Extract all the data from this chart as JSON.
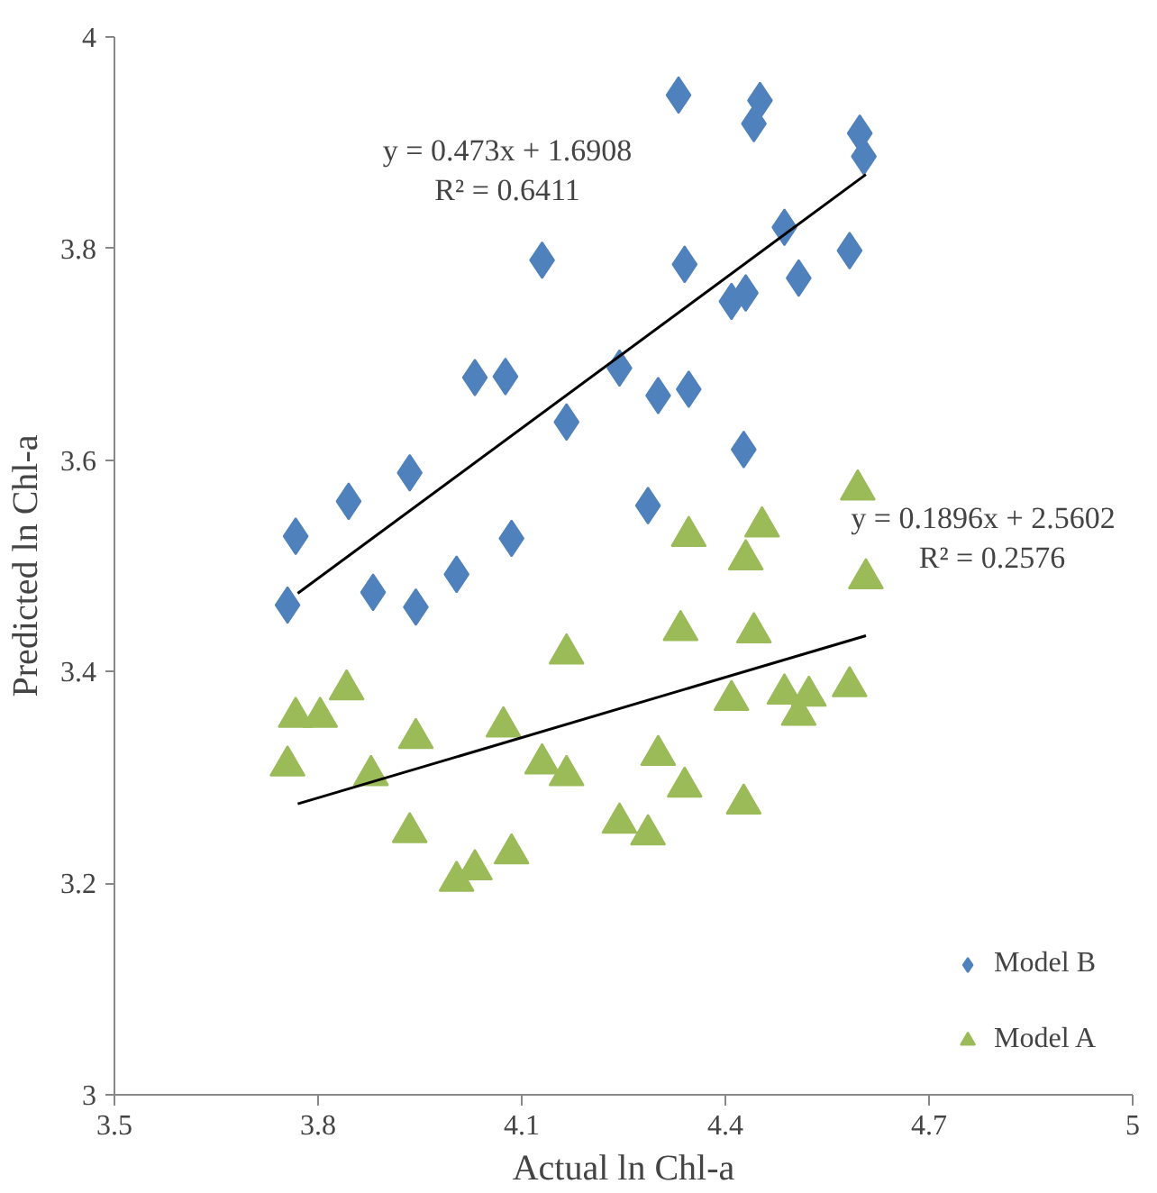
{
  "chart_data": {
    "type": "scatter",
    "xlabel": "Actual ln Chl-a",
    "ylabel": "Predicted ln Chl-a",
    "xlim": [
      3.5,
      5
    ],
    "ylim": [
      3,
      4
    ],
    "xticks": [
      3.5,
      3.8,
      4.1,
      4.4,
      4.7,
      5
    ],
    "yticks": [
      3,
      3.2,
      3.4,
      3.6,
      3.8,
      4
    ],
    "grid": false,
    "legend": "bottom right",
    "series": [
      {
        "name": "Model B",
        "color": "#4f81bd",
        "marker": "diamond",
        "x": [
          3.755,
          3.767,
          3.845,
          3.881,
          3.935,
          3.944,
          4.004,
          4.031,
          4.076,
          4.085,
          4.13,
          4.166,
          4.244,
          4.286,
          4.301,
          4.331,
          4.34,
          4.346,
          4.409,
          4.43,
          4.427,
          4.442,
          4.451,
          4.487,
          4.508,
          4.583,
          4.598,
          4.604
        ],
        "values": [
          3.463,
          3.528,
          3.561,
          3.475,
          3.588,
          3.461,
          3.492,
          3.678,
          3.679,
          3.526,
          3.789,
          3.636,
          3.687,
          3.557,
          3.661,
          3.945,
          3.785,
          3.667,
          3.75,
          3.758,
          3.61,
          3.918,
          3.94,
          3.82,
          3.772,
          3.798,
          3.909,
          3.887
        ]
      },
      {
        "name": "Model A",
        "color": "#9bbb59",
        "marker": "triangle",
        "x": [
          3.755,
          3.767,
          3.803,
          3.842,
          3.878,
          3.935,
          3.944,
          4.004,
          4.031,
          4.073,
          4.085,
          4.13,
          4.166,
          4.166,
          4.244,
          4.286,
          4.301,
          4.334,
          4.34,
          4.346,
          4.409,
          4.427,
          4.43,
          4.442,
          4.454,
          4.487,
          4.508,
          4.523,
          4.583,
          4.595,
          4.607
        ],
        "values": [
          3.311,
          3.357,
          3.357,
          3.383,
          3.302,
          3.248,
          3.337,
          3.202,
          3.213,
          3.348,
          3.228,
          3.313,
          3.302,
          3.417,
          3.257,
          3.246,
          3.321,
          3.439,
          3.291,
          3.528,
          3.373,
          3.275,
          3.506,
          3.437,
          3.537,
          3.379,
          3.359,
          3.377,
          3.386,
          3.572,
          3.488
        ]
      },
      {
        "type": "line",
        "color": "#000000",
        "x": [
          3.77,
          4.607
        ],
        "values": [
          3.474,
          3.87
        ]
      },
      {
        "type": "line",
        "color": "#000000",
        "x": [
          3.77,
          4.607
        ],
        "values": [
          3.275,
          3.434
        ]
      }
    ],
    "annotations": [
      "y = 0.473x + 1.6908",
      "R² = 0.6411",
      "y = 0.1896x + 2.5602",
      "R² = 0.2576"
    ]
  }
}
